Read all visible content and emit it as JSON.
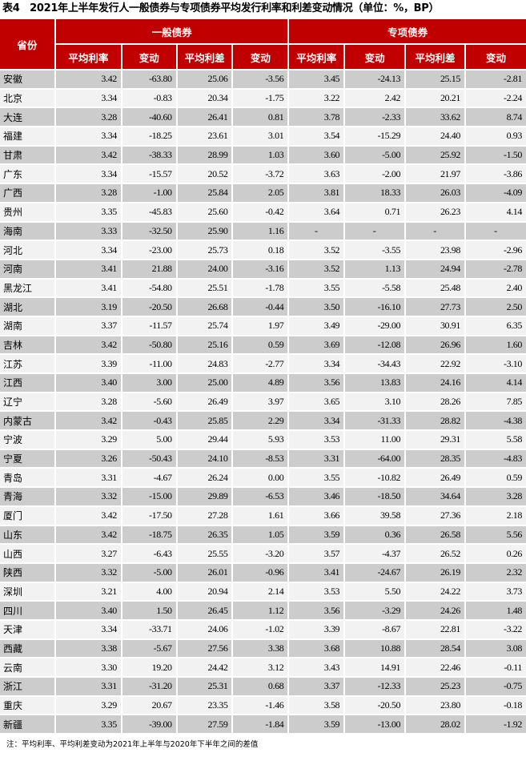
{
  "title": "表4　2021年上半年发行人一般债券与专项债券平均发行利率和利差变动情况（单位：%，BP）",
  "header": {
    "province": "省份",
    "group_general": "一般债券",
    "group_special": "专项债券",
    "columns": [
      "平均利率",
      "变动",
      "平均利差",
      "变动",
      "平均利率",
      "变动",
      "平均利差",
      "变动"
    ]
  },
  "rows": [
    {
      "name": "安徽",
      "values": [
        "3.42",
        "-63.80",
        "25.06",
        "-3.56",
        "3.45",
        "-24.13",
        "25.15",
        "-2.81"
      ]
    },
    {
      "name": "北京",
      "values": [
        "3.34",
        "-0.83",
        "20.34",
        "-1.75",
        "3.22",
        "2.42",
        "20.21",
        "-2.24"
      ]
    },
    {
      "name": "大连",
      "values": [
        "3.28",
        "-40.60",
        "26.41",
        "0.81",
        "3.78",
        "-2.33",
        "33.62",
        "8.74"
      ]
    },
    {
      "name": "福建",
      "values": [
        "3.34",
        "-18.25",
        "23.61",
        "3.01",
        "3.54",
        "-15.29",
        "24.40",
        "0.93"
      ]
    },
    {
      "name": "甘肃",
      "values": [
        "3.42",
        "-38.33",
        "28.99",
        "1.03",
        "3.60",
        "-5.00",
        "25.92",
        "-1.50"
      ]
    },
    {
      "name": "广东",
      "values": [
        "3.34",
        "-15.57",
        "20.52",
        "-3.72",
        "3.63",
        "-2.00",
        "21.97",
        "-3.86"
      ]
    },
    {
      "name": "广西",
      "values": [
        "3.28",
        "-1.00",
        "25.84",
        "2.05",
        "3.81",
        "18.33",
        "26.03",
        "-4.09"
      ]
    },
    {
      "name": "贵州",
      "values": [
        "3.35",
        "-45.83",
        "25.60",
        "-0.42",
        "3.64",
        "0.71",
        "26.23",
        "4.14"
      ]
    },
    {
      "name": "海南",
      "values": [
        "3.33",
        "-32.50",
        "25.90",
        "1.16",
        "-",
        "-",
        "-",
        "-"
      ]
    },
    {
      "name": "河北",
      "values": [
        "3.34",
        "-23.00",
        "25.73",
        "0.18",
        "3.52",
        "-3.55",
        "23.98",
        "-2.96"
      ]
    },
    {
      "name": "河南",
      "values": [
        "3.41",
        "21.88",
        "24.00",
        "-3.16",
        "3.52",
        "1.13",
        "24.94",
        "-2.78"
      ]
    },
    {
      "name": "黑龙江",
      "values": [
        "3.41",
        "-54.80",
        "25.51",
        "-1.78",
        "3.55",
        "-5.58",
        "25.48",
        "2.40"
      ]
    },
    {
      "name": "湖北",
      "values": [
        "3.19",
        "-20.50",
        "26.68",
        "-0.44",
        "3.50",
        "-16.10",
        "27.73",
        "2.50"
      ]
    },
    {
      "name": "湖南",
      "values": [
        "3.37",
        "-11.57",
        "25.74",
        "1.97",
        "3.49",
        "-29.00",
        "30.91",
        "6.35"
      ]
    },
    {
      "name": "吉林",
      "values": [
        "3.42",
        "-50.80",
        "25.16",
        "0.59",
        "3.69",
        "-12.08",
        "26.96",
        "1.60"
      ]
    },
    {
      "name": "江苏",
      "values": [
        "3.39",
        "-11.00",
        "24.83",
        "-2.77",
        "3.34",
        "-34.43",
        "22.92",
        "-3.10"
      ]
    },
    {
      "name": "江西",
      "values": [
        "3.40",
        "3.00",
        "25.00",
        "4.89",
        "3.56",
        "13.83",
        "24.16",
        "4.14"
      ]
    },
    {
      "name": "辽宁",
      "values": [
        "3.28",
        "-5.60",
        "26.49",
        "3.97",
        "3.65",
        "3.10",
        "28.26",
        "7.85"
      ]
    },
    {
      "name": "内蒙古",
      "values": [
        "3.42",
        "-0.43",
        "25.85",
        "2.29",
        "3.34",
        "-31.33",
        "28.82",
        "-4.38"
      ]
    },
    {
      "name": "宁波",
      "values": [
        "3.29",
        "5.00",
        "29.44",
        "5.93",
        "3.53",
        "11.00",
        "29.31",
        "5.58"
      ]
    },
    {
      "name": "宁夏",
      "values": [
        "3.26",
        "-50.43",
        "24.10",
        "-8.53",
        "3.31",
        "-64.00",
        "28.35",
        "-4.83"
      ]
    },
    {
      "name": "青岛",
      "values": [
        "3.31",
        "-4.67",
        "26.24",
        "0.00",
        "3.55",
        "-10.82",
        "26.49",
        "0.59"
      ]
    },
    {
      "name": "青海",
      "values": [
        "3.32",
        "-15.00",
        "29.89",
        "-6.53",
        "3.46",
        "-18.50",
        "34.64",
        "3.28"
      ]
    },
    {
      "name": "厦门",
      "values": [
        "3.42",
        "-17.50",
        "27.28",
        "1.61",
        "3.66",
        "39.58",
        "27.36",
        "2.18"
      ]
    },
    {
      "name": "山东",
      "values": [
        "3.42",
        "-18.75",
        "26.35",
        "1.05",
        "3.59",
        "0.36",
        "26.58",
        "5.56"
      ]
    },
    {
      "name": "山西",
      "values": [
        "3.27",
        "-6.43",
        "25.55",
        "-3.20",
        "3.57",
        "-4.37",
        "26.52",
        "0.26"
      ]
    },
    {
      "name": "陕西",
      "values": [
        "3.32",
        "-5.00",
        "26.01",
        "-0.96",
        "3.41",
        "-24.67",
        "26.19",
        "2.32"
      ]
    },
    {
      "name": "深圳",
      "values": [
        "3.21",
        "4.00",
        "20.94",
        "2.14",
        "3.53",
        "5.50",
        "24.22",
        "3.73"
      ]
    },
    {
      "name": "四川",
      "values": [
        "3.40",
        "1.50",
        "26.45",
        "1.12",
        "3.56",
        "-3.29",
        "24.26",
        "1.48"
      ]
    },
    {
      "name": "天津",
      "values": [
        "3.34",
        "-33.71",
        "24.06",
        "-1.02",
        "3.39",
        "-8.67",
        "22.81",
        "-3.22"
      ]
    },
    {
      "name": "西藏",
      "values": [
        "3.38",
        "-5.67",
        "27.56",
        "3.38",
        "3.68",
        "10.88",
        "28.54",
        "3.08"
      ]
    },
    {
      "name": "云南",
      "values": [
        "3.30",
        "19.20",
        "24.42",
        "3.12",
        "3.43",
        "14.91",
        "22.46",
        "-0.11"
      ]
    },
    {
      "name": "浙江",
      "values": [
        "3.31",
        "-31.20",
        "25.31",
        "0.68",
        "3.37",
        "-12.33",
        "25.23",
        "-0.75"
      ]
    },
    {
      "name": "重庆",
      "values": [
        "3.29",
        "20.67",
        "23.35",
        "-1.46",
        "3.58",
        "-20.50",
        "23.80",
        "-0.18"
      ]
    },
    {
      "name": "新疆",
      "values": [
        "3.35",
        "-39.00",
        "27.59",
        "-1.84",
        "3.59",
        "-13.00",
        "28.02",
        "-1.92"
      ]
    }
  ],
  "colors": {
    "header_bg": "#c00000",
    "row_dark": "#cccccc",
    "row_light": "#f2f2f2"
  },
  "note": "注：平均利率、平均利差变动为2021年上半年与2020年下半年之间的差值"
}
